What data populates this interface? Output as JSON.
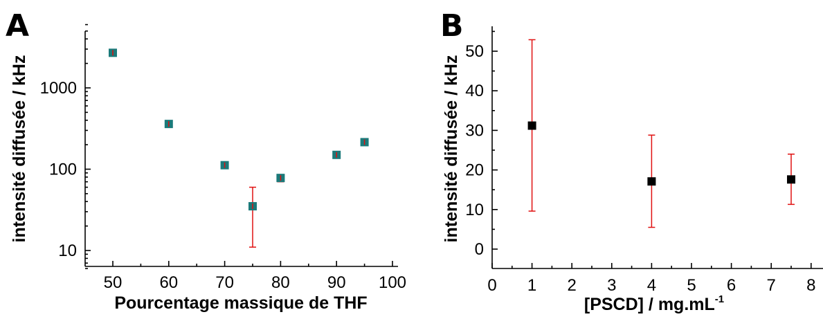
{
  "chart_data": [
    {
      "panel": "A",
      "type": "scatter",
      "title": "",
      "xlabel": "Pourcentage massique de THF",
      "ylabel": "intensité diffusée / kHz",
      "xlim": [
        45,
        100
      ],
      "ylim": [
        6,
        6000
      ],
      "yscale": "log",
      "xticks": [
        50,
        60,
        70,
        80,
        90,
        100
      ],
      "yticks": [
        10,
        100,
        1000
      ],
      "grid": false,
      "marker_color": "#1a7a7a",
      "error_color": "#e01010",
      "series": [
        {
          "x": [
            50,
            60,
            70,
            75,
            80,
            90,
            95
          ],
          "y": [
            2700,
            360,
            112,
            35,
            78,
            150,
            215
          ],
          "y_err_low": [
            2700,
            360,
            112,
            11,
            70,
            150,
            215
          ],
          "y_err_high": [
            2700,
            360,
            112,
            60,
            86,
            150,
            215
          ]
        }
      ]
    },
    {
      "panel": "B",
      "type": "scatter",
      "title": "",
      "xlabel": "[PSCD] / mg.mL",
      "xlabel_sup": "-1",
      "ylabel": "intensité diffusée / kHz",
      "xlim": [
        0,
        8.3
      ],
      "ylim": [
        -5,
        56
      ],
      "yscale": "linear",
      "xticks": [
        0,
        1,
        2,
        3,
        4,
        5,
        6,
        7,
        8
      ],
      "yticks": [
        0,
        10,
        20,
        30,
        40,
        50
      ],
      "grid": false,
      "marker_color": "#000000",
      "error_color": "#e01010",
      "series": [
        {
          "x": [
            1,
            4,
            7.5
          ],
          "y": [
            31.2,
            17.1,
            17.6
          ],
          "y_err_low": [
            9.6,
            5.5,
            11.3
          ],
          "y_err_high": [
            52.9,
            28.8,
            24.0
          ]
        }
      ]
    }
  ]
}
